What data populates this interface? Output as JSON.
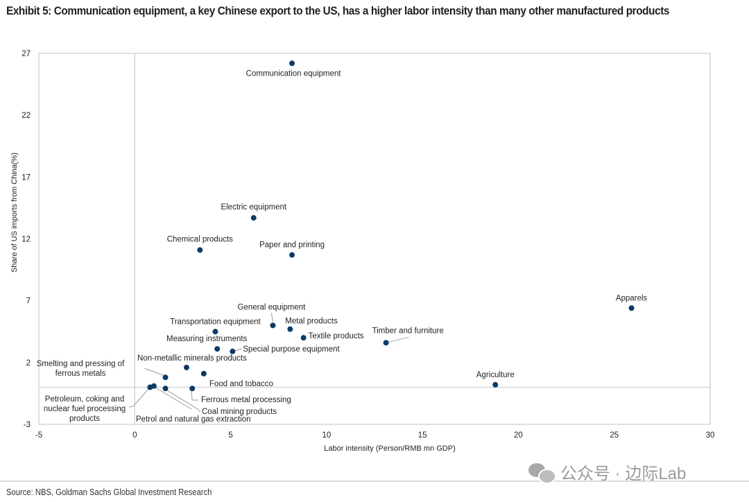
{
  "title": "Exhibit 5: Communication equipment, a key Chinese export to the US, has a higher labor intensity than many other manufactured products",
  "source": "Source: NBS, Goldman Sachs Global Investment Research",
  "watermark": {
    "icon": "wechat-icon",
    "text": "公众号 · 边际Lab"
  },
  "colors": {
    "point": "#0d3b66",
    "grid": "#d0d0d0",
    "leader": "#9a9a9a"
  },
  "chart_data": {
    "type": "scatter",
    "title": "Exhibit 5: Communication equipment, a key Chinese export to the US, has a higher labor intensity than many other manufactured products",
    "xlabel": "Labor intensity (Person/RMB mn GDP)",
    "ylabel": "Share of US imports from China(%)",
    "xlim": [
      -5,
      30
    ],
    "ylim": [
      -3,
      27
    ],
    "xticks": [
      -5,
      0,
      5,
      10,
      15,
      20,
      25,
      30
    ],
    "yticks": [
      -3,
      2,
      7,
      12,
      17,
      22,
      27
    ],
    "grid": false,
    "reference_lines": {
      "x": 0,
      "y": 0
    },
    "legend": "none",
    "points": [
      {
        "label": "Communication equipment",
        "x": 8.2,
        "y": 26.2
      },
      {
        "label": "Electric equipment",
        "x": 6.2,
        "y": 13.7
      },
      {
        "label": "Chemical products",
        "x": 3.4,
        "y": 11.1
      },
      {
        "label": "Paper and printing",
        "x": 8.2,
        "y": 10.7
      },
      {
        "label": "Apparels",
        "x": 25.9,
        "y": 6.4
      },
      {
        "label": "General equipment",
        "x": 7.2,
        "y": 5.0
      },
      {
        "label": "Transportation equipment",
        "x": 4.2,
        "y": 4.5
      },
      {
        "label": "Metal products",
        "x": 8.1,
        "y": 4.7
      },
      {
        "label": "Textile products",
        "x": 8.8,
        "y": 4.0
      },
      {
        "label": "Timber and furniture",
        "x": 13.1,
        "y": 3.6
      },
      {
        "label": "Measuring instruments",
        "x": 4.3,
        "y": 3.1
      },
      {
        "label": "Special purpose equipment",
        "x": 5.1,
        "y": 2.9
      },
      {
        "label": "Non-metallic minerals products",
        "x": 2.7,
        "y": 1.6
      },
      {
        "label": "Food and tobacco",
        "x": 3.6,
        "y": 1.1
      },
      {
        "label": "Smelting and pressing of ferrous metals",
        "x": 1.6,
        "y": 0.8
      },
      {
        "label": "Agriculture",
        "x": 18.8,
        "y": 0.2
      },
      {
        "label": "Petroleum, coking and nuclear fuel processing products",
        "x": 0.8,
        "y": 0.0
      },
      {
        "label": "Petrol and natural gas extraction",
        "x": 1.0,
        "y": 0.1
      },
      {
        "label": "Coal mining products",
        "x": 1.6,
        "y": -0.1
      },
      {
        "label": "Ferrous metal processing",
        "x": 3.0,
        "y": -0.1
      }
    ]
  }
}
